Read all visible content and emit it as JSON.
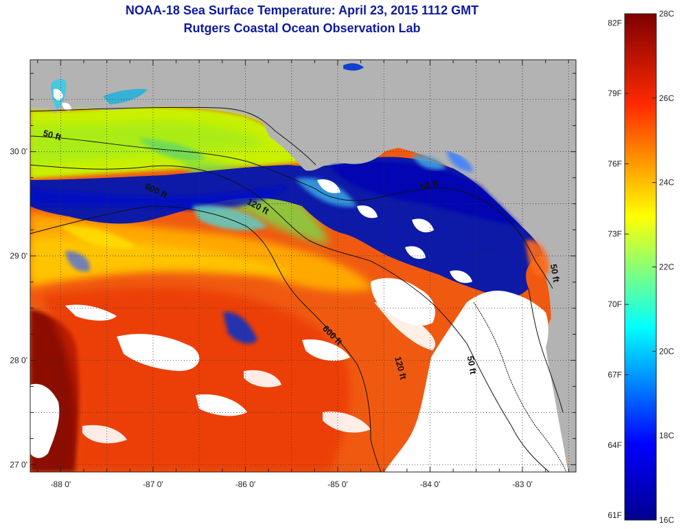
{
  "header": {
    "title": "NOAA-18 Sea Surface Temperature:  April 23, 2015 1112 GMT",
    "subtitle": "Rutgers Coastal Ocean Observation Lab"
  },
  "axes": {
    "x_ticks": [
      {
        "value": -88,
        "label": "-88 0'"
      },
      {
        "value": -87,
        "label": "-87 0'"
      },
      {
        "value": -86,
        "label": "-86 0'"
      },
      {
        "value": -85,
        "label": "-85 0'"
      },
      {
        "value": -84,
        "label": "-84 0'"
      },
      {
        "value": -83,
        "label": "-83 0'"
      }
    ],
    "y_ticks": [
      {
        "value": 30,
        "label": "30 0'"
      },
      {
        "value": 29,
        "label": "29 0'"
      },
      {
        "value": 28,
        "label": "28 0'"
      },
      {
        "value": 27,
        "label": "27 0'"
      }
    ],
    "xlim": [
      -88.33,
      -82.42
    ],
    "ylim": [
      26.93,
      30.88
    ]
  },
  "contour_labels": [
    {
      "text": "50 ft",
      "lon": -88.1,
      "lat": 30.13,
      "rotate": 15
    },
    {
      "text": "600 ft",
      "lon": -86.98,
      "lat": 29.6,
      "rotate": 25
    },
    {
      "text": "120 ft",
      "lon": -85.88,
      "lat": 29.45,
      "rotate": 28
    },
    {
      "text": "50 ft",
      "lon": -84.0,
      "lat": 29.65,
      "rotate": -15
    },
    {
      "text": "600 ft",
      "lon": -85.08,
      "lat": 28.22,
      "rotate": 45
    },
    {
      "text": "120 ft",
      "lon": -84.35,
      "lat": 27.92,
      "rotate": 75
    },
    {
      "text": "50 ft",
      "lon": -83.58,
      "lat": 27.95,
      "rotate": 80
    },
    {
      "text": "50 ft",
      "lon": -82.68,
      "lat": 28.83,
      "rotate": 80
    }
  ],
  "colorbar": {
    "min_c": 16,
    "max_c": 28,
    "celsius_ticks": [
      {
        "value": 28,
        "label": "28C"
      },
      {
        "value": 26,
        "label": "26C"
      },
      {
        "value": 24,
        "label": "24C"
      },
      {
        "value": 22,
        "label": "22C"
      },
      {
        "value": 20,
        "label": "20C"
      },
      {
        "value": 18,
        "label": "18C"
      },
      {
        "value": 16,
        "label": "16C"
      }
    ],
    "fahrenheit_ticks": [
      {
        "value": 82,
        "label": "82F"
      },
      {
        "value": 79,
        "label": "79F"
      },
      {
        "value": 76,
        "label": "76F"
      },
      {
        "value": 73,
        "label": "73F"
      },
      {
        "value": 70,
        "label": "70F"
      },
      {
        "value": 67,
        "label": "67F"
      },
      {
        "value": 64,
        "label": "64F"
      },
      {
        "value": 61,
        "label": "61F"
      }
    ]
  },
  "colors": {
    "land": "#b3b3b3",
    "cloud": "#ffffff",
    "title": "#0d1aa0"
  }
}
